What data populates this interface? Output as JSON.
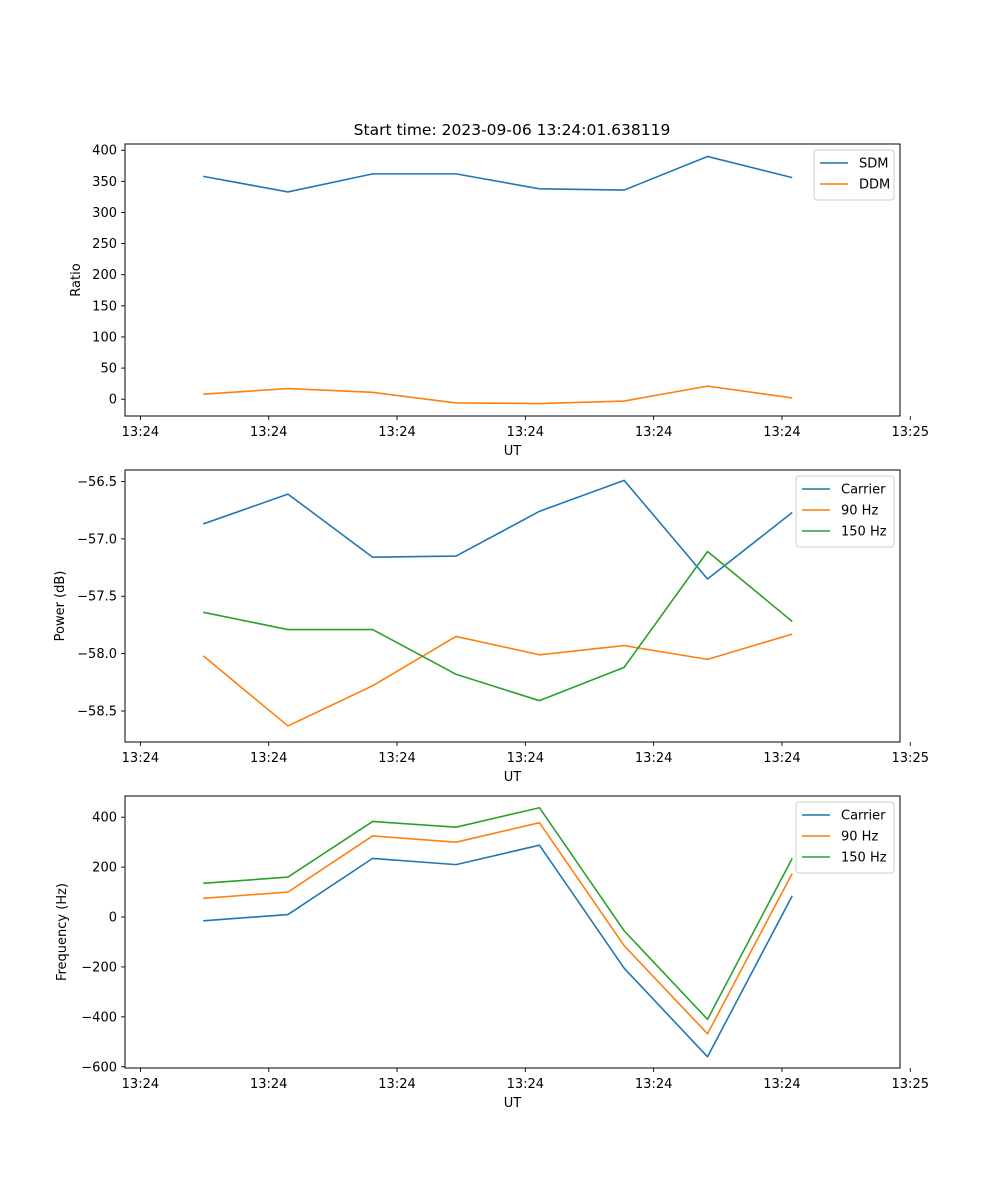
{
  "chart_data": [
    {
      "type": "line",
      "title": "Start time: 2023-09-06 13:24:01.638119",
      "xlabel": "UT",
      "ylabel": "Ratio",
      "xlim": [
        -0.12,
        5.92
      ],
      "ylim": [
        -27,
        410
      ],
      "xtick_positions": [
        0,
        1,
        2,
        3,
        4,
        5,
        6
      ],
      "xtick_labels": [
        "13:24",
        "13:24",
        "13:24",
        "13:24",
        "13:24",
        "13:24",
        "13:25"
      ],
      "ytick_values": [
        0,
        50,
        100,
        150,
        200,
        250,
        300,
        350,
        400
      ],
      "ytick_labels": [
        "0",
        "50",
        "100",
        "150",
        "200",
        "250",
        "300",
        "350",
        "400"
      ],
      "legend_position": "top-right",
      "x": [
        0.49,
        1.15,
        1.81,
        2.46,
        3.11,
        3.77,
        4.42,
        5.08
      ],
      "series": [
        {
          "name": "SDM",
          "color": "#1f77b4",
          "values": [
            358,
            333,
            362,
            362,
            338,
            336,
            390,
            356
          ]
        },
        {
          "name": "DDM",
          "color": "#ff7f0e",
          "values": [
            8,
            17,
            11,
            -6,
            -7,
            -3,
            21,
            2
          ]
        }
      ]
    },
    {
      "type": "line",
      "title": "",
      "xlabel": "UT",
      "ylabel": "Power (dB)",
      "xlim": [
        -0.12,
        5.92
      ],
      "ylim": [
        -58.77,
        -56.4
      ],
      "xtick_positions": [
        0,
        1,
        2,
        3,
        4,
        5,
        6
      ],
      "xtick_labels": [
        "13:24",
        "13:24",
        "13:24",
        "13:24",
        "13:24",
        "13:24",
        "13:25"
      ],
      "ytick_values": [
        -58.5,
        -58.0,
        -57.5,
        -57.0,
        -56.5
      ],
      "ytick_labels": [
        "−58.5",
        "−58.0",
        "−57.5",
        "−57.0",
        "−56.5"
      ],
      "legend_position": "top-right",
      "x": [
        0.49,
        1.15,
        1.81,
        2.46,
        3.11,
        3.77,
        4.42,
        5.08
      ],
      "series": [
        {
          "name": "Carrier",
          "color": "#1f77b4",
          "values": [
            -56.87,
            -56.61,
            -57.16,
            -57.15,
            -56.76,
            -56.49,
            -57.35,
            -56.77
          ]
        },
        {
          "name": "90 Hz",
          "color": "#ff7f0e",
          "values": [
            -58.02,
            -58.63,
            -58.28,
            -57.85,
            -58.01,
            -57.93,
            -58.05,
            -57.83
          ]
        },
        {
          "name": "150 Hz",
          "color": "#2ca02c",
          "values": [
            -57.64,
            -57.79,
            -57.79,
            -58.18,
            -58.41,
            -58.12,
            -57.11,
            -57.72
          ]
        }
      ]
    },
    {
      "type": "line",
      "title": "",
      "xlabel": "UT",
      "ylabel": "Frequency (Hz)",
      "xlim": [
        -0.12,
        5.92
      ],
      "ylim": [
        -605,
        485
      ],
      "xtick_positions": [
        0,
        1,
        2,
        3,
        4,
        5,
        6
      ],
      "xtick_labels": [
        "13:24",
        "13:24",
        "13:24",
        "13:24",
        "13:24",
        "13:24",
        "13:25"
      ],
      "ytick_values": [
        -600,
        -400,
        -200,
        0,
        200,
        400
      ],
      "ytick_labels": [
        "−600",
        "−400",
        "−200",
        "0",
        "200",
        "400"
      ],
      "legend_position": "top-right",
      "x": [
        0.49,
        1.15,
        1.81,
        2.46,
        3.11,
        3.77,
        4.42,
        5.08
      ],
      "series": [
        {
          "name": "Carrier",
          "color": "#1f77b4",
          "values": [
            -15,
            10,
            235,
            210,
            288,
            -205,
            -560,
            85
          ]
        },
        {
          "name": "90 Hz",
          "color": "#ff7f0e",
          "values": [
            75,
            100,
            325,
            300,
            378,
            -115,
            -468,
            175
          ]
        },
        {
          "name": "150 Hz",
          "color": "#2ca02c",
          "values": [
            135,
            160,
            383,
            360,
            438,
            -55,
            -410,
            235
          ]
        }
      ]
    }
  ]
}
